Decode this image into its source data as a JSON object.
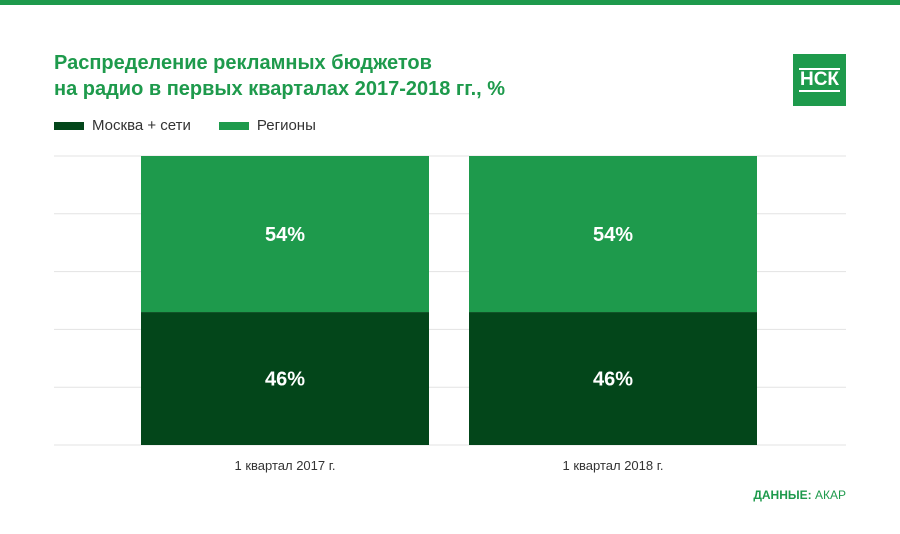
{
  "title_lines": [
    "Распределение рекламных бюджетов",
    "на радио в первых кварталах 2017-2018 гг., %"
  ],
  "logo": "НСК",
  "colors": {
    "accent": "#1e9a4c",
    "dark": "#03461a",
    "grid": "#e3e3e3",
    "text": "#333333"
  },
  "source": {
    "label": "ДАННЫЕ:",
    "value": "АКАР"
  },
  "chart_data": {
    "type": "bar",
    "stacked": true,
    "percent": true,
    "categories": [
      "1 квартал 2017 г.",
      "1 квартал 2018 г."
    ],
    "series": [
      {
        "name": "Москва + сети",
        "values": [
          46,
          46
        ],
        "labels": [
          "46%",
          "46%"
        ],
        "color": "#03461a"
      },
      {
        "name": "Регионы",
        "values": [
          54,
          54
        ],
        "labels": [
          "54%",
          "54%"
        ],
        "color": "#1e9a4c"
      }
    ],
    "ylim": [
      0,
      100
    ],
    "grid": true,
    "legend": "top-left"
  }
}
